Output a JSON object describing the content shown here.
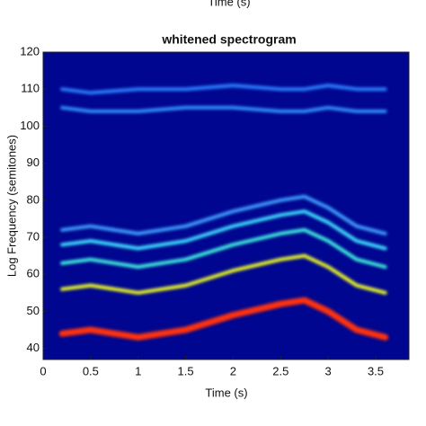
{
  "chart_data": {
    "type": "spectrogram",
    "header_text": "Time (s)",
    "title": "whitened spectrogram",
    "xlabel": "Time (s)",
    "ylabel": "Log Frequency (semitones)",
    "background": "#00068f",
    "xlim": [
      0,
      3.85
    ],
    "ylim": [
      37,
      120
    ],
    "xticks": [
      0,
      0.5,
      1,
      1.5,
      2,
      2.5,
      3,
      3.5
    ],
    "yticks": [
      40,
      50,
      60,
      70,
      80,
      90,
      100,
      110,
      120
    ],
    "x": [
      0.2,
      0.5,
      1,
      1.5,
      2,
      2.5,
      2.75,
      3,
      3.3,
      3.6
    ],
    "ridges": [
      {
        "color": "#ff3010",
        "values": [
          44,
          45,
          43,
          45,
          49,
          52,
          53,
          50,
          45,
          43
        ]
      },
      {
        "color": "#f0ff20",
        "values": [
          56,
          57,
          55,
          57,
          61,
          64,
          65,
          62,
          57,
          55
        ]
      },
      {
        "color": "#40f0e0",
        "values": [
          63,
          64,
          62,
          64,
          68,
          71,
          72,
          69,
          64,
          62
        ]
      },
      {
        "color": "#40e0ff",
        "values": [
          68,
          69,
          67,
          69,
          73,
          76,
          77,
          74,
          69,
          67
        ]
      },
      {
        "color": "#3fa0ff",
        "values": [
          72,
          73,
          71,
          73,
          77,
          80,
          81,
          78,
          73,
          71
        ]
      },
      {
        "color": "#3090ff",
        "values": [
          105,
          104,
          104,
          105,
          105,
          104,
          104,
          105,
          104,
          104
        ]
      },
      {
        "color": "#2c80ff",
        "values": [
          110,
          109,
          110,
          110,
          111,
          110,
          110,
          111,
          110,
          110
        ]
      }
    ]
  }
}
